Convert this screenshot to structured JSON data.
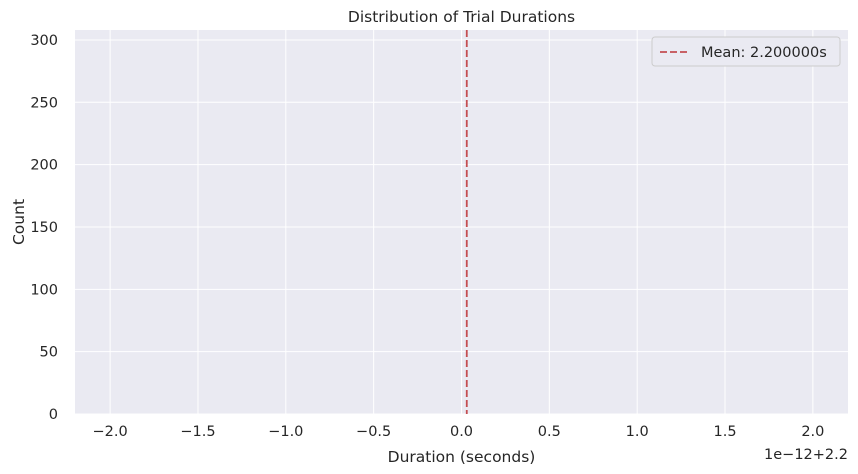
{
  "chart_data": {
    "type": "bar",
    "title": "Distribution of Trial Durations",
    "xlabel": "Duration (seconds)",
    "ylabel": "Count",
    "x_offset_label": "1e−12+2.2",
    "xlim": [
      -2.2,
      2.2
    ],
    "ylim": [
      0,
      308
    ],
    "x_ticks": [
      -2.0,
      -1.5,
      -1.0,
      -0.5,
      0.0,
      0.5,
      1.0,
      1.5,
      2.0
    ],
    "x_tick_labels": [
      "−2.0",
      "−1.5",
      "−1.0",
      "−0.5",
      "0.0",
      "0.5",
      "1.0",
      "1.5",
      "2.0"
    ],
    "y_ticks": [
      0,
      50,
      100,
      150,
      200,
      250,
      300
    ],
    "y_tick_labels": [
      "0",
      "50",
      "100",
      "150",
      "200",
      "250",
      "300"
    ],
    "grid": true,
    "mean_line": {
      "x": 0.03,
      "label": "Mean: 2.200000s",
      "color": "#c44e52",
      "style": "dashed"
    },
    "legend": {
      "placement": "top-right",
      "entries": [
        "Mean: 2.200000s"
      ]
    },
    "colors": {
      "plot_background": "#eaeaf2",
      "grid": "#ffffff",
      "text": "#262626"
    }
  }
}
